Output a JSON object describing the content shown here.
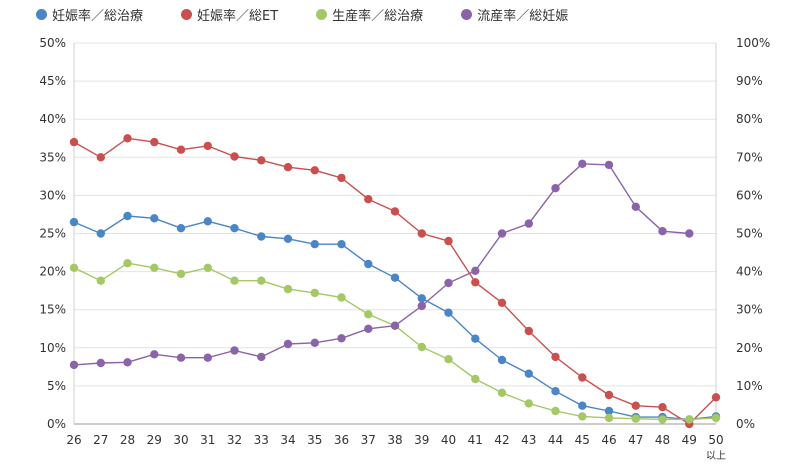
{
  "chart_data": {
    "type": "line",
    "title": "",
    "xlabel": "",
    "ylabel": "",
    "x": [
      "26",
      "27",
      "28",
      "29",
      "30",
      "31",
      "32",
      "33",
      "34",
      "35",
      "36",
      "37",
      "38",
      "39",
      "40",
      "41",
      "42",
      "43",
      "44",
      "45",
      "46",
      "47",
      "48",
      "49",
      "50"
    ],
    "x_tick_sublabels": {
      "50": "以上"
    },
    "ylim": [
      0,
      50
    ],
    "y2lim": [
      0,
      100
    ],
    "y_ticks": [
      "0%",
      "5%",
      "10%",
      "15%",
      "20%",
      "25%",
      "30%",
      "35%",
      "40%",
      "45%",
      "50%"
    ],
    "y2_ticks": [
      "0%",
      "10%",
      "20%",
      "30%",
      "40%",
      "50%",
      "60%",
      "70%",
      "80%",
      "90%",
      "100%"
    ],
    "grid": true,
    "legend_position": "top-left",
    "series": [
      {
        "name": "妊娠率／総治療",
        "color": "#4a86c5",
        "axis": "left",
        "x": [
          "26",
          "27",
          "28",
          "29",
          "30",
          "31",
          "32",
          "33",
          "34",
          "35",
          "36",
          "37",
          "38",
          "39",
          "40",
          "41",
          "42",
          "43",
          "44",
          "45",
          "46",
          "47",
          "48",
          "49",
          "50"
        ],
        "values": [
          26.5,
          25.0,
          27.3,
          27.0,
          25.7,
          26.6,
          25.7,
          24.6,
          24.3,
          23.6,
          23.6,
          21.0,
          19.2,
          16.5,
          14.6,
          11.2,
          8.4,
          6.6,
          4.3,
          2.4,
          1.7,
          0.9,
          0.9,
          0.6,
          1.0
        ]
      },
      {
        "name": "妊娠率／総ET",
        "color": "#c9504f",
        "axis": "left",
        "x": [
          "26",
          "27",
          "28",
          "29",
          "30",
          "31",
          "32",
          "33",
          "34",
          "35",
          "36",
          "37",
          "38",
          "39",
          "40",
          "41",
          "42",
          "43",
          "44",
          "45",
          "46",
          "47",
          "48",
          "49",
          "50"
        ],
        "values": [
          37.0,
          35.0,
          37.5,
          37.0,
          36.0,
          36.5,
          35.1,
          34.6,
          33.7,
          33.3,
          32.3,
          29.5,
          27.9,
          25.0,
          24.0,
          18.6,
          15.9,
          12.2,
          8.8,
          6.1,
          3.8,
          2.4,
          2.2,
          0.0,
          3.5
        ]
      },
      {
        "name": "生産率／総治療",
        "color": "#a5c866",
        "axis": "left",
        "x": [
          "26",
          "27",
          "28",
          "29",
          "30",
          "31",
          "32",
          "33",
          "34",
          "35",
          "36",
          "37",
          "38",
          "39",
          "40",
          "41",
          "42",
          "43",
          "44",
          "45",
          "46",
          "47",
          "48",
          "49",
          "50"
        ],
        "values": [
          20.5,
          18.8,
          21.1,
          20.5,
          19.7,
          20.5,
          18.8,
          18.8,
          17.7,
          17.2,
          16.6,
          14.4,
          12.9,
          10.1,
          8.5,
          5.9,
          4.1,
          2.7,
          1.7,
          1.0,
          0.8,
          0.7,
          0.6,
          0.6,
          0.8
        ]
      },
      {
        "name": "流産率／総妊娠",
        "color": "#8a63a8",
        "axis": "right",
        "x": [
          "26",
          "27",
          "28",
          "29",
          "30",
          "31",
          "32",
          "33",
          "34",
          "35",
          "36",
          "37",
          "38",
          "39",
          "40",
          "41",
          "42",
          "43",
          "44",
          "45",
          "46",
          "47",
          "48",
          "49"
        ],
        "values": [
          15.5,
          16.0,
          16.2,
          18.3,
          17.4,
          17.4,
          19.3,
          17.6,
          21.0,
          21.3,
          22.5,
          25.0,
          25.8,
          31.0,
          37.0,
          40.2,
          50.0,
          52.6,
          61.9,
          68.3,
          68.0,
          57.0,
          50.6,
          50.0
        ]
      }
    ]
  }
}
